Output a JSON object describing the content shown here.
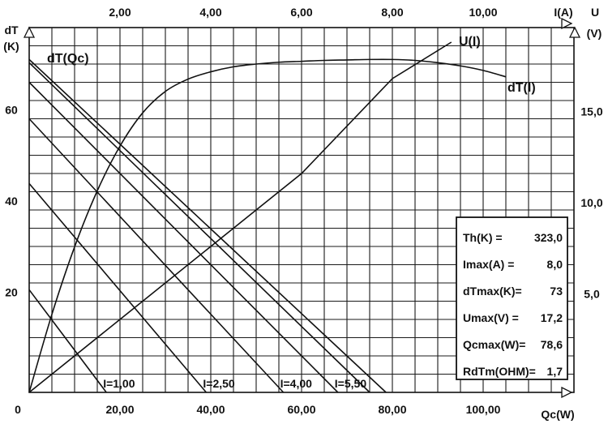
{
  "chart_data": {
    "type": "line",
    "title": "",
    "axes": {
      "bottom": {
        "label": "Qc(W)",
        "range": [
          0,
          120
        ],
        "ticks": [
          "20,00",
          "40,00",
          "60,00",
          "80,00",
          "100,00"
        ],
        "tick_values": [
          20,
          40,
          60,
          80,
          100
        ]
      },
      "top": {
        "label": "I(A)",
        "range": [
          0,
          12
        ],
        "ticks": [
          "2,00",
          "4,00",
          "6,00",
          "8,00",
          "10,00"
        ],
        "tick_values": [
          2,
          4,
          6,
          8,
          10
        ]
      },
      "left": {
        "label_line1": "dT",
        "label_line2": "(K)",
        "range": [
          0,
          80
        ],
        "ticks": [
          "20",
          "40",
          "60"
        ],
        "tick_values": [
          20,
          40,
          60
        ]
      },
      "right": {
        "label_line1": "U",
        "label_line2": "(V)",
        "range": [
          0,
          20
        ],
        "ticks": [
          "5,0",
          "10,0",
          "15,0"
        ],
        "tick_values": [
          5,
          10,
          15
        ]
      },
      "origin_label": "0",
      "grid": true
    },
    "series": [
      {
        "name": "dT(I)",
        "axes": "top-left",
        "x": [
          0,
          0.5,
          1,
          1.5,
          2,
          2.5,
          3,
          3.5,
          4,
          4.5,
          5,
          5.5,
          6,
          6.5,
          7,
          7.5,
          8,
          8.5,
          9,
          9.5,
          10,
          10.5
        ],
        "y": [
          0,
          17.1,
          31.9,
          44.2,
          54.0,
          61.3,
          66.0,
          68.7,
          70.3,
          71.4,
          72.0,
          72.4,
          72.6,
          72.8,
          72.9,
          73.0,
          73.0,
          72.8,
          72.3,
          71.6,
          70.6,
          69.2
        ]
      },
      {
        "name": "U(I)",
        "axes": "top-right",
        "x": [
          0,
          2,
          4,
          6,
          8,
          9.3
        ],
        "y": [
          0,
          4.0,
          8.0,
          12.0,
          17.2,
          19.2
        ]
      }
    ],
    "dTQc_lines": {
      "name": "dT(Qc)",
      "axes": "bottom-left",
      "lines": [
        {
          "label": "I=1,00",
          "dT_at_Qc0": 22.5,
          "Qc_at_dT0": 17
        },
        {
          "label": "I=2,50",
          "dT_at_Qc0": 45.8,
          "Qc_at_dT0": 39
        },
        {
          "label": "I=4,00",
          "dT_at_Qc0": 60.0,
          "Qc_at_dT0": 56
        },
        {
          "label": "I=5,50",
          "dT_at_Qc0": 68.0,
          "Qc_at_dT0": 68
        },
        {
          "label": "",
          "dT_at_Qc0": 72.3,
          "Qc_at_dT0": 75
        },
        {
          "label": "",
          "dT_at_Qc0": 73.0,
          "Qc_at_dT0": 78.6
        }
      ]
    },
    "parameters": [
      {
        "label": "Th(K) =",
        "value": "323,0"
      },
      {
        "label": "Imax(A) =",
        "value": "8,0"
      },
      {
        "label": "dTmax(K)=",
        "value": "73"
      },
      {
        "label": "Umax(V) =",
        "value": "17,2"
      },
      {
        "label": "Qcmax(W)=",
        "value": "78,6"
      },
      {
        "label": "RdTm(OHM)=",
        "value": "1,7"
      }
    ]
  }
}
